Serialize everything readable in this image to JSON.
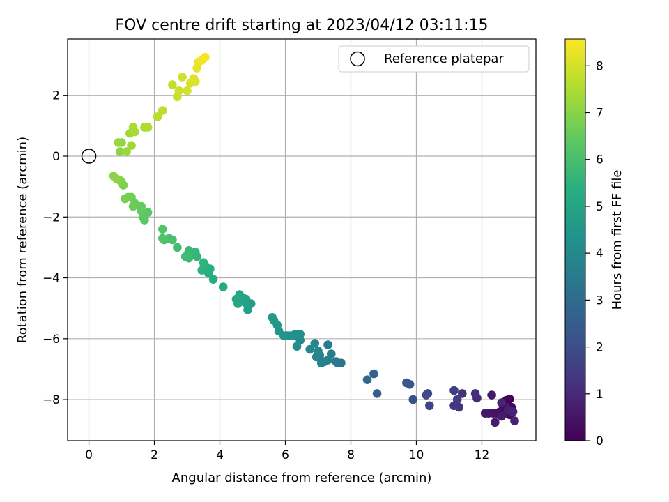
{
  "chart_data": {
    "type": "scatter",
    "title": "FOV centre drift starting at 2023/04/12 03:11:15",
    "xlabel": "Angular distance from reference (arcmin)",
    "ylabel": "Rotation from reference (arcmin)",
    "xlim": [
      -0.65,
      13.65
    ],
    "ylim": [
      -9.35,
      3.85
    ],
    "xticks": [
      0,
      2,
      4,
      6,
      8,
      10,
      12
    ],
    "yticks": [
      -8,
      -6,
      -4,
      -2,
      0,
      2
    ],
    "grid": true,
    "legend": {
      "location": "top-right",
      "entries": [
        "Reference platepar"
      ]
    },
    "reference_point": {
      "x": 0,
      "y": 0,
      "label": "Reference platepar"
    },
    "colorbar": {
      "label": "Hours from first FF file",
      "colormap": "viridis",
      "range": [
        0,
        8.57
      ],
      "ticks": [
        0,
        1,
        2,
        3,
        4,
        5,
        6,
        7,
        8
      ]
    },
    "series": [
      {
        "note_columns": [
          "x",
          "y",
          "hours"
        ],
        "points": [
          [
            12.85,
            -7.98,
            0.05
          ],
          [
            12.75,
            -8.02,
            0.1
          ],
          [
            12.9,
            -8.25,
            0.15
          ],
          [
            12.65,
            -8.2,
            0.2
          ],
          [
            12.7,
            -8.45,
            0.25
          ],
          [
            12.85,
            -8.5,
            0.3
          ],
          [
            12.55,
            -8.4,
            0.35
          ],
          [
            12.45,
            -8.45,
            0.4
          ],
          [
            12.35,
            -8.45,
            0.45
          ],
          [
            12.2,
            -8.45,
            0.5
          ],
          [
            12.1,
            -8.45,
            0.55
          ],
          [
            12.3,
            -7.85,
            0.6
          ],
          [
            12.6,
            -8.55,
            0.65
          ],
          [
            12.4,
            -8.75,
            0.7
          ],
          [
            12.8,
            -8.35,
            0.75
          ],
          [
            13.0,
            -8.7,
            0.8
          ],
          [
            12.95,
            -8.4,
            0.85
          ],
          [
            12.6,
            -8.1,
            0.9
          ],
          [
            11.85,
            -7.95,
            1.0
          ],
          [
            11.8,
            -7.8,
            1.1
          ],
          [
            11.4,
            -7.8,
            1.2
          ],
          [
            11.3,
            -8.25,
            1.3
          ],
          [
            11.15,
            -8.2,
            1.4
          ],
          [
            11.25,
            -8.0,
            1.5
          ],
          [
            11.15,
            -7.7,
            1.6
          ],
          [
            10.4,
            -8.2,
            1.75
          ],
          [
            10.35,
            -7.8,
            1.85
          ],
          [
            10.3,
            -7.85,
            1.95
          ],
          [
            9.9,
            -8.0,
            2.1
          ],
          [
            9.8,
            -7.5,
            2.2
          ],
          [
            9.7,
            -7.45,
            2.3
          ],
          [
            8.8,
            -7.8,
            2.5
          ],
          [
            8.7,
            -7.15,
            2.7
          ],
          [
            8.5,
            -7.35,
            2.9
          ],
          [
            7.7,
            -6.8,
            3.3
          ],
          [
            7.6,
            -6.8,
            3.4
          ],
          [
            7.55,
            -6.75,
            3.45
          ],
          [
            7.4,
            -6.5,
            3.55
          ],
          [
            7.3,
            -6.2,
            3.6
          ],
          [
            7.3,
            -6.7,
            3.65
          ],
          [
            7.2,
            -6.75,
            3.7
          ],
          [
            7.1,
            -6.8,
            3.75
          ],
          [
            7.05,
            -6.55,
            3.8
          ],
          [
            6.95,
            -6.6,
            3.85
          ],
          [
            7.0,
            -6.4,
            3.9
          ],
          [
            6.9,
            -6.15,
            3.95
          ],
          [
            6.75,
            -6.35,
            4.0
          ],
          [
            6.45,
            -6.05,
            4.05
          ],
          [
            6.35,
            -6.25,
            4.1
          ],
          [
            6.3,
            -5.9,
            4.15
          ],
          [
            6.45,
            -5.85,
            4.2
          ],
          [
            6.3,
            -5.85,
            4.25
          ],
          [
            6.15,
            -5.9,
            4.3
          ],
          [
            6.05,
            -5.9,
            4.35
          ],
          [
            5.95,
            -5.9,
            4.4
          ],
          [
            5.8,
            -5.75,
            4.45
          ],
          [
            5.75,
            -5.55,
            4.5
          ],
          [
            5.65,
            -5.4,
            4.55
          ],
          [
            5.6,
            -5.3,
            4.6
          ],
          [
            4.95,
            -4.85,
            4.75
          ],
          [
            4.85,
            -5.05,
            4.8
          ],
          [
            4.8,
            -4.85,
            4.85
          ],
          [
            4.8,
            -4.7,
            4.9
          ],
          [
            4.7,
            -4.65,
            4.95
          ],
          [
            4.6,
            -4.55,
            5.0
          ],
          [
            4.55,
            -4.85,
            5.05
          ],
          [
            4.5,
            -4.7,
            5.1
          ],
          [
            4.1,
            -4.3,
            5.2
          ],
          [
            3.8,
            -4.05,
            5.3
          ],
          [
            3.65,
            -3.85,
            5.35
          ],
          [
            3.7,
            -3.7,
            5.4
          ],
          [
            3.55,
            -3.6,
            5.45
          ],
          [
            3.45,
            -3.75,
            5.5
          ],
          [
            3.5,
            -3.5,
            5.55
          ],
          [
            3.3,
            -3.3,
            5.6
          ],
          [
            3.25,
            -3.15,
            5.65
          ],
          [
            3.15,
            -3.2,
            5.7
          ],
          [
            3.05,
            -3.1,
            5.75
          ],
          [
            3.05,
            -3.35,
            5.8
          ],
          [
            2.95,
            -3.3,
            5.85
          ],
          [
            2.7,
            -3.0,
            5.9
          ],
          [
            2.55,
            -2.75,
            6.0
          ],
          [
            2.45,
            -2.7,
            6.05
          ],
          [
            2.3,
            -2.75,
            6.1
          ],
          [
            2.25,
            -2.7,
            6.15
          ],
          [
            2.25,
            -2.4,
            6.2
          ],
          [
            1.8,
            -1.85,
            6.3
          ],
          [
            1.7,
            -2.1,
            6.35
          ],
          [
            1.65,
            -2.0,
            6.4
          ],
          [
            1.6,
            -1.8,
            6.45
          ],
          [
            1.6,
            -1.65,
            6.5
          ],
          [
            1.4,
            -1.55,
            6.55
          ],
          [
            1.35,
            -1.65,
            6.6
          ],
          [
            1.3,
            -1.35,
            6.65
          ],
          [
            1.2,
            -1.35,
            6.7
          ],
          [
            1.1,
            -1.4,
            6.75
          ],
          [
            1.05,
            -0.95,
            6.85
          ],
          [
            1.0,
            -0.85,
            6.9
          ],
          [
            0.95,
            -0.8,
            6.95
          ],
          [
            0.85,
            -0.75,
            7.0
          ],
          [
            0.75,
            -0.65,
            7.05
          ],
          [
            0.95,
            0.15,
            7.1
          ],
          [
            1.0,
            0.45,
            7.15
          ],
          [
            0.9,
            0.45,
            7.2
          ],
          [
            1.15,
            0.15,
            7.25
          ],
          [
            1.3,
            0.35,
            7.3
          ],
          [
            1.25,
            0.75,
            7.35
          ],
          [
            1.4,
            0.8,
            7.4
          ],
          [
            1.35,
            0.95,
            7.45
          ],
          [
            1.7,
            0.95,
            7.5
          ],
          [
            1.8,
            0.95,
            7.55
          ],
          [
            2.1,
            1.3,
            7.65
          ],
          [
            2.25,
            1.5,
            7.7
          ],
          [
            2.55,
            2.35,
            7.8
          ],
          [
            2.7,
            1.95,
            7.85
          ],
          [
            2.75,
            2.15,
            7.9
          ],
          [
            2.85,
            2.6,
            7.95
          ],
          [
            3.0,
            2.15,
            8.0
          ],
          [
            3.1,
            2.4,
            8.05
          ],
          [
            3.2,
            2.55,
            8.1
          ],
          [
            3.25,
            2.45,
            8.15
          ],
          [
            3.3,
            2.9,
            8.25
          ],
          [
            3.35,
            3.1,
            8.3
          ],
          [
            3.45,
            3.15,
            8.4
          ],
          [
            3.55,
            3.25,
            8.5
          ]
        ]
      }
    ]
  }
}
